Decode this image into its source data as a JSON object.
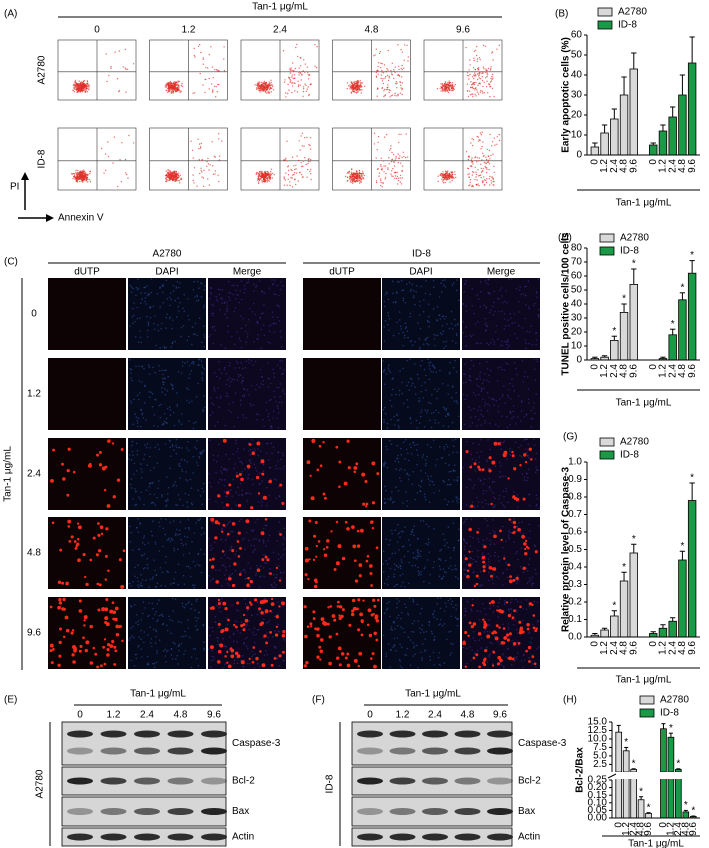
{
  "flow_cytometry": {
    "label": "(A)",
    "header": "Tan-1 μg/mL",
    "concentrations": [
      "0",
      "1.2",
      "2.4",
      "4.8",
      "9.6"
    ],
    "rows": [
      "A2780",
      "ID-8"
    ],
    "y_axis": "PI",
    "x_axis": "Annexin V"
  },
  "tunel_images": {
    "label": "(C)",
    "side_label": "Tan-1 μg/mL",
    "rows": [
      "0",
      "1.2",
      "2.4",
      "4.8",
      "9.6"
    ],
    "groups": [
      {
        "name": "A2780",
        "columns": [
          "dUTP",
          "DAPI",
          "Merge"
        ]
      },
      {
        "name": "ID-8",
        "columns": [
          "dUTP",
          "DAPI",
          "Merge"
        ]
      }
    ]
  },
  "western_blots": [
    {
      "label": "(E)",
      "header": "Tan-1 μg/mL",
      "concentrations": [
        "0",
        "1.2",
        "2.4",
        "4.8",
        "9.6"
      ],
      "cell_line": "A2780",
      "proteins": [
        "Caspase-3",
        "Bcl-2",
        "Bax",
        "Actin"
      ]
    },
    {
      "label": "(F)",
      "header": "Tan-1 μg/mL",
      "concentrations": [
        "0",
        "1.2",
        "2.4",
        "4.8",
        "9.6"
      ],
      "cell_line": "ID-8",
      "proteins": [
        "Caspase-3",
        "Bcl-2",
        "Bax",
        "Actin"
      ]
    }
  ],
  "chart_data": [
    {
      "type": "bar",
      "label": "(B)",
      "y_label": "Early apoptotic cells (%)",
      "x_label": "Tan-1 μg/mL",
      "categories": [
        "0",
        "1.2",
        "2.4",
        "4.8",
        "9.6"
      ],
      "ylim": [
        0,
        60
      ],
      "yticks": [
        0,
        10,
        20,
        30,
        40,
        50,
        60
      ],
      "series": [
        {
          "name": "A2780",
          "color": "#d9d9d9",
          "values": [
            4,
            11,
            18,
            30,
            43
          ],
          "errors": [
            2,
            4,
            5,
            9,
            8
          ]
        },
        {
          "name": "ID-8",
          "color": "#1a9a46",
          "values": [
            5,
            12,
            19,
            30,
            46
          ],
          "errors": [
            1,
            3,
            5,
            10,
            13
          ]
        }
      ]
    },
    {
      "type": "bar",
      "label": "(D)",
      "y_label": "TUNEL positive cells/100 cells",
      "x_label": "Tan-1 μg/mL",
      "categories": [
        "0",
        "1.2",
        "2.4",
        "4.8",
        "9.6"
      ],
      "ylim": [
        0,
        80
      ],
      "yticks": [
        0,
        10,
        20,
        30,
        40,
        50,
        60,
        70,
        80
      ],
      "series": [
        {
          "name": "A2780",
          "color": "#d9d9d9",
          "values": [
            1,
            2,
            14,
            34,
            54
          ],
          "errors": [
            1,
            1,
            3,
            6,
            11
          ],
          "stars": [
            null,
            null,
            "*",
            "*",
            "*"
          ]
        },
        {
          "name": "ID-8",
          "color": "#1a9a46",
          "values": [
            0,
            1,
            18,
            43,
            62
          ],
          "errors": [
            0,
            1,
            4,
            5,
            9
          ],
          "stars": [
            null,
            null,
            "*",
            "*",
            "*"
          ]
        }
      ]
    },
    {
      "type": "bar",
      "label": "(G)",
      "y_label": "Relative protein level of Caspase-3",
      "x_label": "Tan-1 μg/mL",
      "categories": [
        "0",
        "1.2",
        "2.4",
        "4.8",
        "9.6"
      ],
      "ylim": [
        0,
        1
      ],
      "yticks": [
        {
          "value": 0,
          "label": "0.0"
        },
        0.1,
        0.2,
        0.3,
        0.4,
        0.5,
        0.6,
        0.7,
        0.8,
        0.9,
        {
          "value": 1,
          "label": "1.0"
        }
      ],
      "series": [
        {
          "name": "A2780",
          "color": "#d9d9d9",
          "values": [
            0.01,
            0.04,
            0.12,
            0.32,
            0.48
          ],
          "errors": [
            0.01,
            0.01,
            0.03,
            0.05,
            0.05
          ],
          "stars": [
            null,
            null,
            "*",
            "*",
            "*"
          ]
        },
        {
          "name": "ID-8",
          "color": "#1a9a46",
          "values": [
            0.02,
            0.05,
            0.09,
            0.44,
            0.78
          ],
          "errors": [
            0.01,
            0.02,
            0.02,
            0.05,
            0.1
          ],
          "stars": [
            null,
            null,
            null,
            "*",
            "*"
          ]
        }
      ]
    },
    {
      "type": "bar",
      "label": "(H)",
      "y_label": "Bcl-2/Bax",
      "x_label": "Tan-1 μg/mL",
      "categories": [
        "0",
        "1.2",
        "2.4",
        "4.8",
        "9.6"
      ],
      "segments": [
        {
          "ylim": [
            0,
            0.25
          ],
          "yticks": [
            {
              "value": 0,
              "label": "0.00"
            },
            0.05,
            {
              "value": 0.1,
              "label": "0.10"
            },
            0.15,
            {
              "value": 0.2,
              "label": "0.20"
            },
            0.25
          ]
        },
        {
          "ylim": [
            0.25,
            15
          ],
          "yticks": [
            2.5,
            {
              "value": 5,
              "label": "5.0"
            },
            7.5,
            {
              "value": 10,
              "label": "10.0"
            },
            12.5,
            {
              "value": 15,
              "label": "15.0"
            }
          ]
        }
      ],
      "series": [
        {
          "name": "A2780",
          "color": "#d9d9d9",
          "values": [
            12,
            6.5,
            1,
            0.12,
            0.03
          ],
          "errors": [
            2,
            1,
            0.2,
            0.02,
            0.005
          ],
          "stars": [
            null,
            "*",
            "*",
            "*",
            "*"
          ]
        },
        {
          "name": "ID-8",
          "color": "#1a9a46",
          "values": [
            13,
            10.5,
            1,
            0.04,
            0.01
          ],
          "errors": [
            1.5,
            1.2,
            0.2,
            0.01,
            0.003
          ],
          "stars": [
            null,
            "*",
            "*",
            "*",
            "*"
          ]
        }
      ]
    }
  ]
}
